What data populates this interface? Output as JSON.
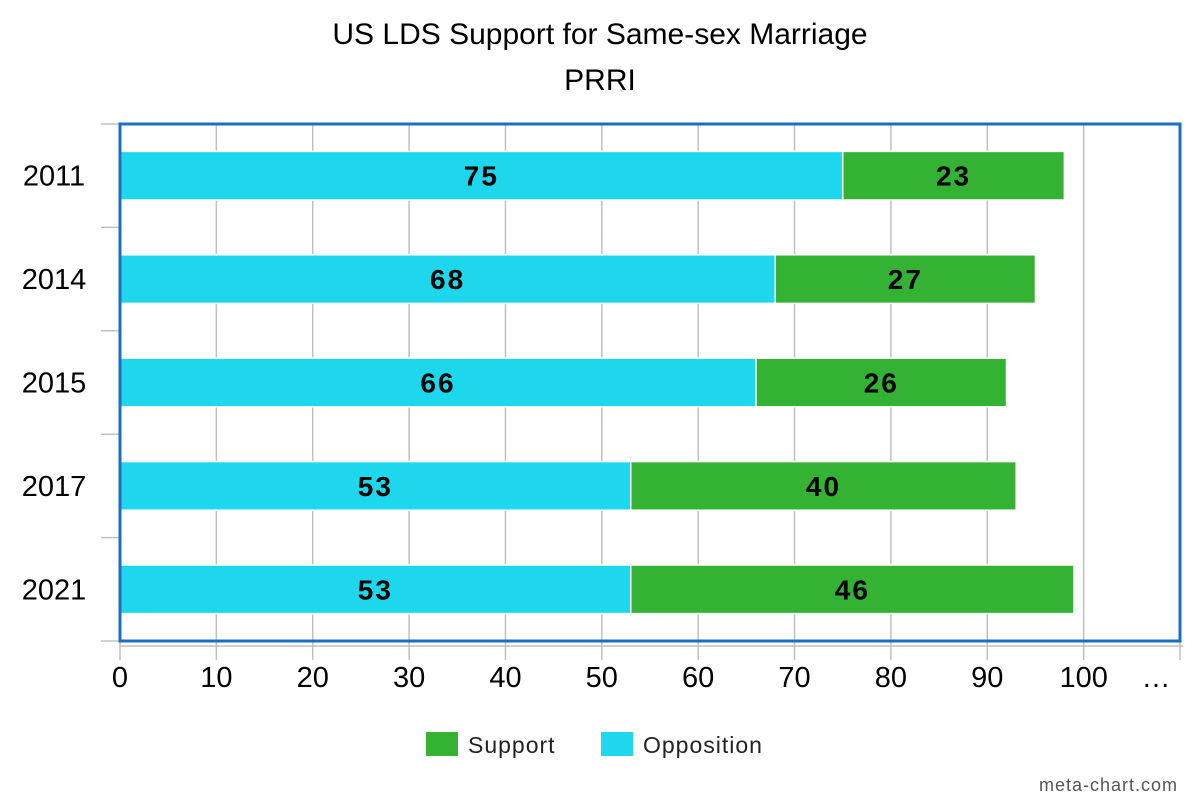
{
  "chart_data": {
    "type": "bar",
    "orientation": "horizontal",
    "stacked": true,
    "title": "US LDS Support for Same-sex Marriage",
    "subtitle": "PRRI",
    "categories": [
      "2011",
      "2014",
      "2015",
      "2017",
      "2021"
    ],
    "series": [
      {
        "name": "Opposition",
        "color": "#1dd7ed",
        "values": [
          75,
          68,
          66,
          53,
          53
        ]
      },
      {
        "name": "Support",
        "color": "#34b233",
        "values": [
          23,
          27,
          26,
          40,
          46
        ]
      }
    ],
    "xlim": [
      0,
      110
    ],
    "x_ticks": [
      "0",
      "10",
      "20",
      "30",
      "40",
      "50",
      "60",
      "70",
      "80",
      "90",
      "100",
      "…"
    ],
    "grid": true,
    "frame_color": "#1a6fbf",
    "legend": {
      "placement": "bottom",
      "order": [
        "Support",
        "Opposition"
      ]
    }
  },
  "credit": "meta-chart.com"
}
